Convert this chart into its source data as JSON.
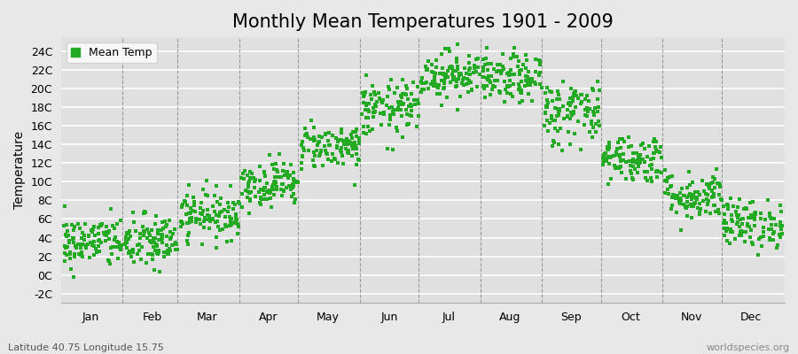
{
  "title": "Monthly Mean Temperatures 1901 - 2009",
  "ylabel": "Temperature",
  "subtitle_left": "Latitude 40.75 Longitude 15.75",
  "subtitle_right": "worldspecies.org",
  "ytick_labels": [
    "-2C",
    "0C",
    "2C",
    "4C",
    "6C",
    "8C",
    "10C",
    "12C",
    "14C",
    "16C",
    "18C",
    "20C",
    "22C",
    "24C"
  ],
  "ytick_values": [
    -2,
    0,
    2,
    4,
    6,
    8,
    10,
    12,
    14,
    16,
    18,
    20,
    22,
    24
  ],
  "ylim": [
    -3.0,
    25.5
  ],
  "xlim": [
    0,
    366
  ],
  "month_labels": [
    "Jan",
    "Feb",
    "Mar",
    "Apr",
    "May",
    "Jun",
    "Jul",
    "Aug",
    "Sep",
    "Oct",
    "Nov",
    "Dec"
  ],
  "month_starts": [
    15,
    46,
    74,
    105,
    135,
    166,
    196,
    227,
    258,
    288,
    319,
    349
  ],
  "month_boundaries": [
    0,
    31,
    59,
    90,
    120,
    151,
    181,
    212,
    243,
    273,
    304,
    334,
    365
  ],
  "dot_color": "#22aa22",
  "bg_color": "#e8e8e8",
  "plot_bg_color": "#e0e0e0",
  "legend_label": "Mean Temp",
  "n_years": 109,
  "monthly_means": [
    3.5,
    3.5,
    6.5,
    9.8,
    13.8,
    17.8,
    21.5,
    21.0,
    17.5,
    12.5,
    8.5,
    5.5
  ],
  "monthly_stds": [
    1.4,
    1.5,
    1.3,
    1.2,
    1.2,
    1.5,
    1.3,
    1.3,
    1.8,
    1.3,
    1.3,
    1.3
  ],
  "seed": 42,
  "grid_line_color": "#ffffff",
  "dashed_line_color": "#888888",
  "title_fontsize": 15,
  "axis_fontsize": 9,
  "ylabel_fontsize": 10
}
